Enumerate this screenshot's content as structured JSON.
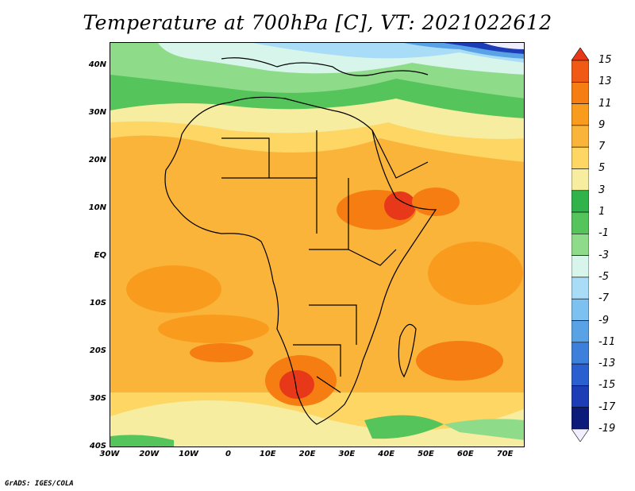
{
  "title": "Temperature at 700hPa [C], VT: 2021022612",
  "credit": "GrADS: IGES/COLA",
  "axes": {
    "lat_labels": [
      "40N",
      "30N",
      "20N",
      "10N",
      "EQ",
      "10S",
      "20S",
      "30S",
      "40S"
    ],
    "lat_values": [
      40,
      30,
      20,
      10,
      0,
      -10,
      -20,
      -30,
      -40
    ],
    "lon_labels": [
      "30W",
      "20W",
      "10W",
      "0",
      "10E",
      "20E",
      "30E",
      "40E",
      "50E",
      "60E",
      "70E"
    ],
    "lon_values": [
      -30,
      -20,
      -10,
      0,
      10,
      20,
      30,
      40,
      50,
      60,
      70
    ],
    "lon_range": [
      -30,
      75
    ],
    "lat_range": [
      -40,
      45
    ]
  },
  "colorbar": {
    "labels": [
      "15",
      "13",
      "11",
      "9",
      "7",
      "5",
      "3",
      "1",
      "-1",
      "-3",
      "-5",
      "-7",
      "-9",
      "-11",
      "-13",
      "-15",
      "-17",
      "-19"
    ],
    "colors": [
      "#e8381a",
      "#f05a14",
      "#f57d12",
      "#f99c1e",
      "#fbb43a",
      "#fdd664",
      "#f7eda0",
      "#2fb34a",
      "#55c45a",
      "#8edb8a",
      "#d7f5ea",
      "#a8dcf7",
      "#7cc1ef",
      "#5aa2e6",
      "#3c80dc",
      "#2a5fcf",
      "#1c3db6",
      "#0c1a7a",
      "#f0eeff"
    ]
  }
}
